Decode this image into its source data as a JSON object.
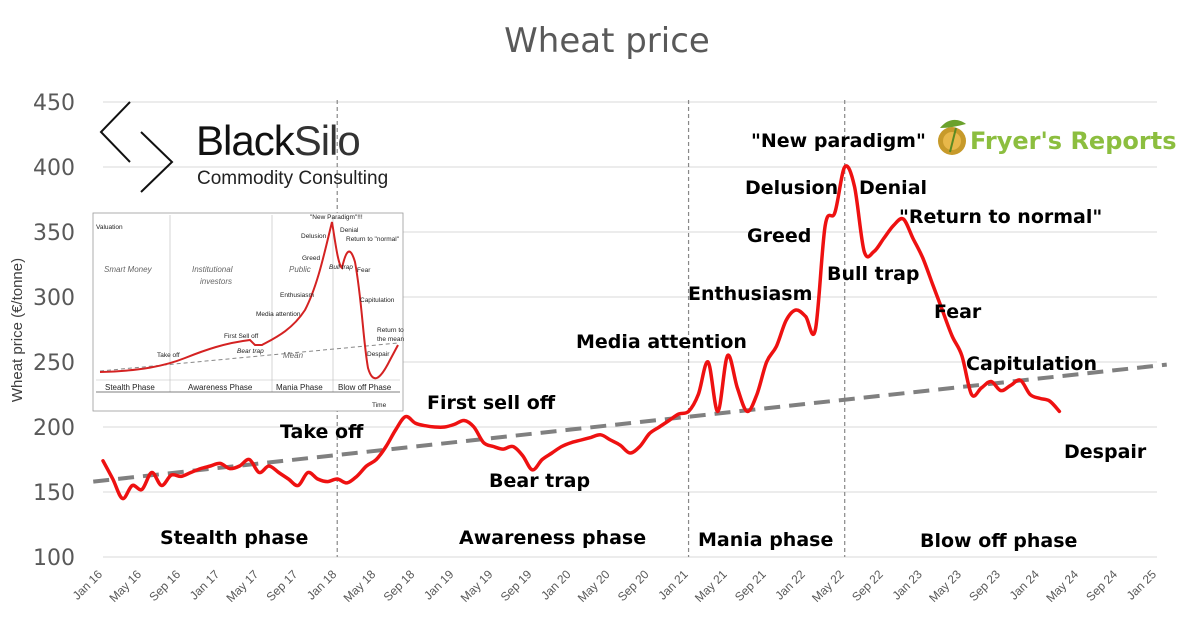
{
  "chart_data": {
    "type": "line",
    "title": "Wheat price",
    "ylabel": "Wheat price (€/tonne)",
    "xlabel": "",
    "ylim": [
      100,
      450
    ],
    "yticks": [
      100,
      150,
      200,
      250,
      300,
      350,
      400,
      450
    ],
    "xlim": [
      "2016-01",
      "2025-01"
    ],
    "x_ticks": [
      "Jan 16",
      "May 16",
      "Sep 16",
      "Jan 17",
      "May 17",
      "Sep 17",
      "Jan 18",
      "May 18",
      "Sep 18",
      "Jan 19",
      "May 19",
      "Sep 19",
      "Jan 20",
      "May 20",
      "Sep 20",
      "Jan 21",
      "May 21",
      "Sep 21",
      "Jan 22",
      "May 22",
      "Sep 22",
      "Jan 23",
      "May 23",
      "Sep 23",
      "Jan 24",
      "May 24",
      "Sep 24",
      "Jan 25"
    ],
    "grid": "horizontal",
    "series": [
      {
        "color": "#ee1111",
        "x": [
          "2016-01",
          "2016-02",
          "2016-03",
          "2016-04",
          "2016-05",
          "2016-06",
          "2016-07",
          "2016-08",
          "2016-09",
          "2016-10",
          "2016-11",
          "2016-12",
          "2017-01",
          "2017-02",
          "2017-03",
          "2017-04",
          "2017-05",
          "2017-06",
          "2017-07",
          "2017-08",
          "2017-09",
          "2017-10",
          "2017-11",
          "2017-12",
          "2018-01",
          "2018-02",
          "2018-03",
          "2018-04",
          "2018-05",
          "2018-06",
          "2018-07",
          "2018-08",
          "2018-09",
          "2018-10",
          "2018-11",
          "2018-12",
          "2019-01",
          "2019-02",
          "2019-03",
          "2019-04",
          "2019-05",
          "2019-06",
          "2019-07",
          "2019-08",
          "2019-09",
          "2019-10",
          "2019-11",
          "2019-12",
          "2020-01",
          "2020-02",
          "2020-03",
          "2020-04",
          "2020-05",
          "2020-06",
          "2020-07",
          "2020-08",
          "2020-09",
          "2020-10",
          "2020-11",
          "2020-12",
          "2021-01",
          "2021-02",
          "2021-03",
          "2021-04",
          "2021-05",
          "2021-06",
          "2021-07",
          "2021-08",
          "2021-09",
          "2021-10",
          "2021-11",
          "2021-12",
          "2022-01",
          "2022-02",
          "2022-03",
          "2022-04",
          "2022-05",
          "2022-06",
          "2022-07",
          "2022-08",
          "2022-09",
          "2022-10",
          "2022-11",
          "2022-12",
          "2023-01",
          "2023-02",
          "2023-03",
          "2023-04",
          "2023-05",
          "2023-06",
          "2023-07",
          "2023-08",
          "2023-09",
          "2023-10",
          "2023-11",
          "2023-12",
          "2024-01",
          "2024-02",
          "2024-03"
        ],
        "values": [
          174,
          160,
          145,
          155,
          152,
          165,
          155,
          163,
          162,
          165,
          168,
          170,
          172,
          168,
          170,
          175,
          165,
          170,
          165,
          160,
          155,
          165,
          160,
          158,
          160,
          157,
          162,
          170,
          175,
          185,
          198,
          208,
          203,
          201,
          200,
          200,
          202,
          205,
          200,
          188,
          185,
          183,
          185,
          178,
          167,
          175,
          180,
          185,
          188,
          190,
          192,
          194,
          190,
          186,
          180,
          185,
          195,
          200,
          205,
          210,
          212,
          225,
          250,
          212,
          255,
          230,
          212,
          225,
          250,
          262,
          282,
          290,
          285,
          275,
          355,
          365,
          400,
          385,
          335,
          335,
          345,
          355,
          360,
          345,
          330,
          310,
          290,
          270,
          255,
          225,
          230,
          235,
          228,
          232,
          236,
          225,
          222,
          220,
          212
        ]
      }
    ],
    "trend_line": {
      "from": [
        "2015-12",
        158
      ],
      "to": [
        "2025-02",
        248
      ],
      "style": "dashed",
      "color": "#808080"
    },
    "phase_dividers": [
      "2018-01",
      "2021-01",
      "2022-05"
    ],
    "phases": [
      "Stealth phase",
      "Awareness phase",
      "Mania phase",
      "Blow off phase"
    ],
    "annotations": [
      "Take off",
      "First sell off",
      "Bear trap",
      "Media attention",
      "Enthusiasm",
      "Greed",
      "Delusion",
      "\"New paradigm\"",
      "Denial",
      "\"Return to normal\"",
      "Bull trap",
      "Fear",
      "Capitulation",
      "Despair"
    ]
  },
  "logos": {
    "blacksilo_main_a": "Black",
    "blacksilo_main_b": "Silo",
    "blacksilo_sub": "Commodity Consulting",
    "fryers_a": "Fryer's",
    "fryers_b": "Reports"
  },
  "inset": {
    "valuation": "Valuation",
    "time": "Time",
    "smart_money": "Smart Money",
    "institutional": "Institutional",
    "investors": "investors",
    "public": "Public",
    "mean": "Mean",
    "labels": {
      "new_paradigm": "\"New Paradigm\"!!!",
      "delusion": "Delusion",
      "denial": "Denial",
      "return_normal": "Return to \"normal\"",
      "greed": "Greed",
      "bull_trap": "Bull trap",
      "fear": "Fear",
      "enthusiasm": "Enthusiasm",
      "capitulation": "Capitulation",
      "media_attention": "Media attention",
      "first_sell_off": "First Sell off",
      "bear_trap": "Bear trap",
      "take_off": "Take off",
      "return_mean_a": "Return to",
      "return_mean_b": "the mean",
      "despair": "Despair"
    },
    "phases": [
      "Stealth Phase",
      "Awareness Phase",
      "Mania Phase",
      "Blow off Phase"
    ]
  }
}
